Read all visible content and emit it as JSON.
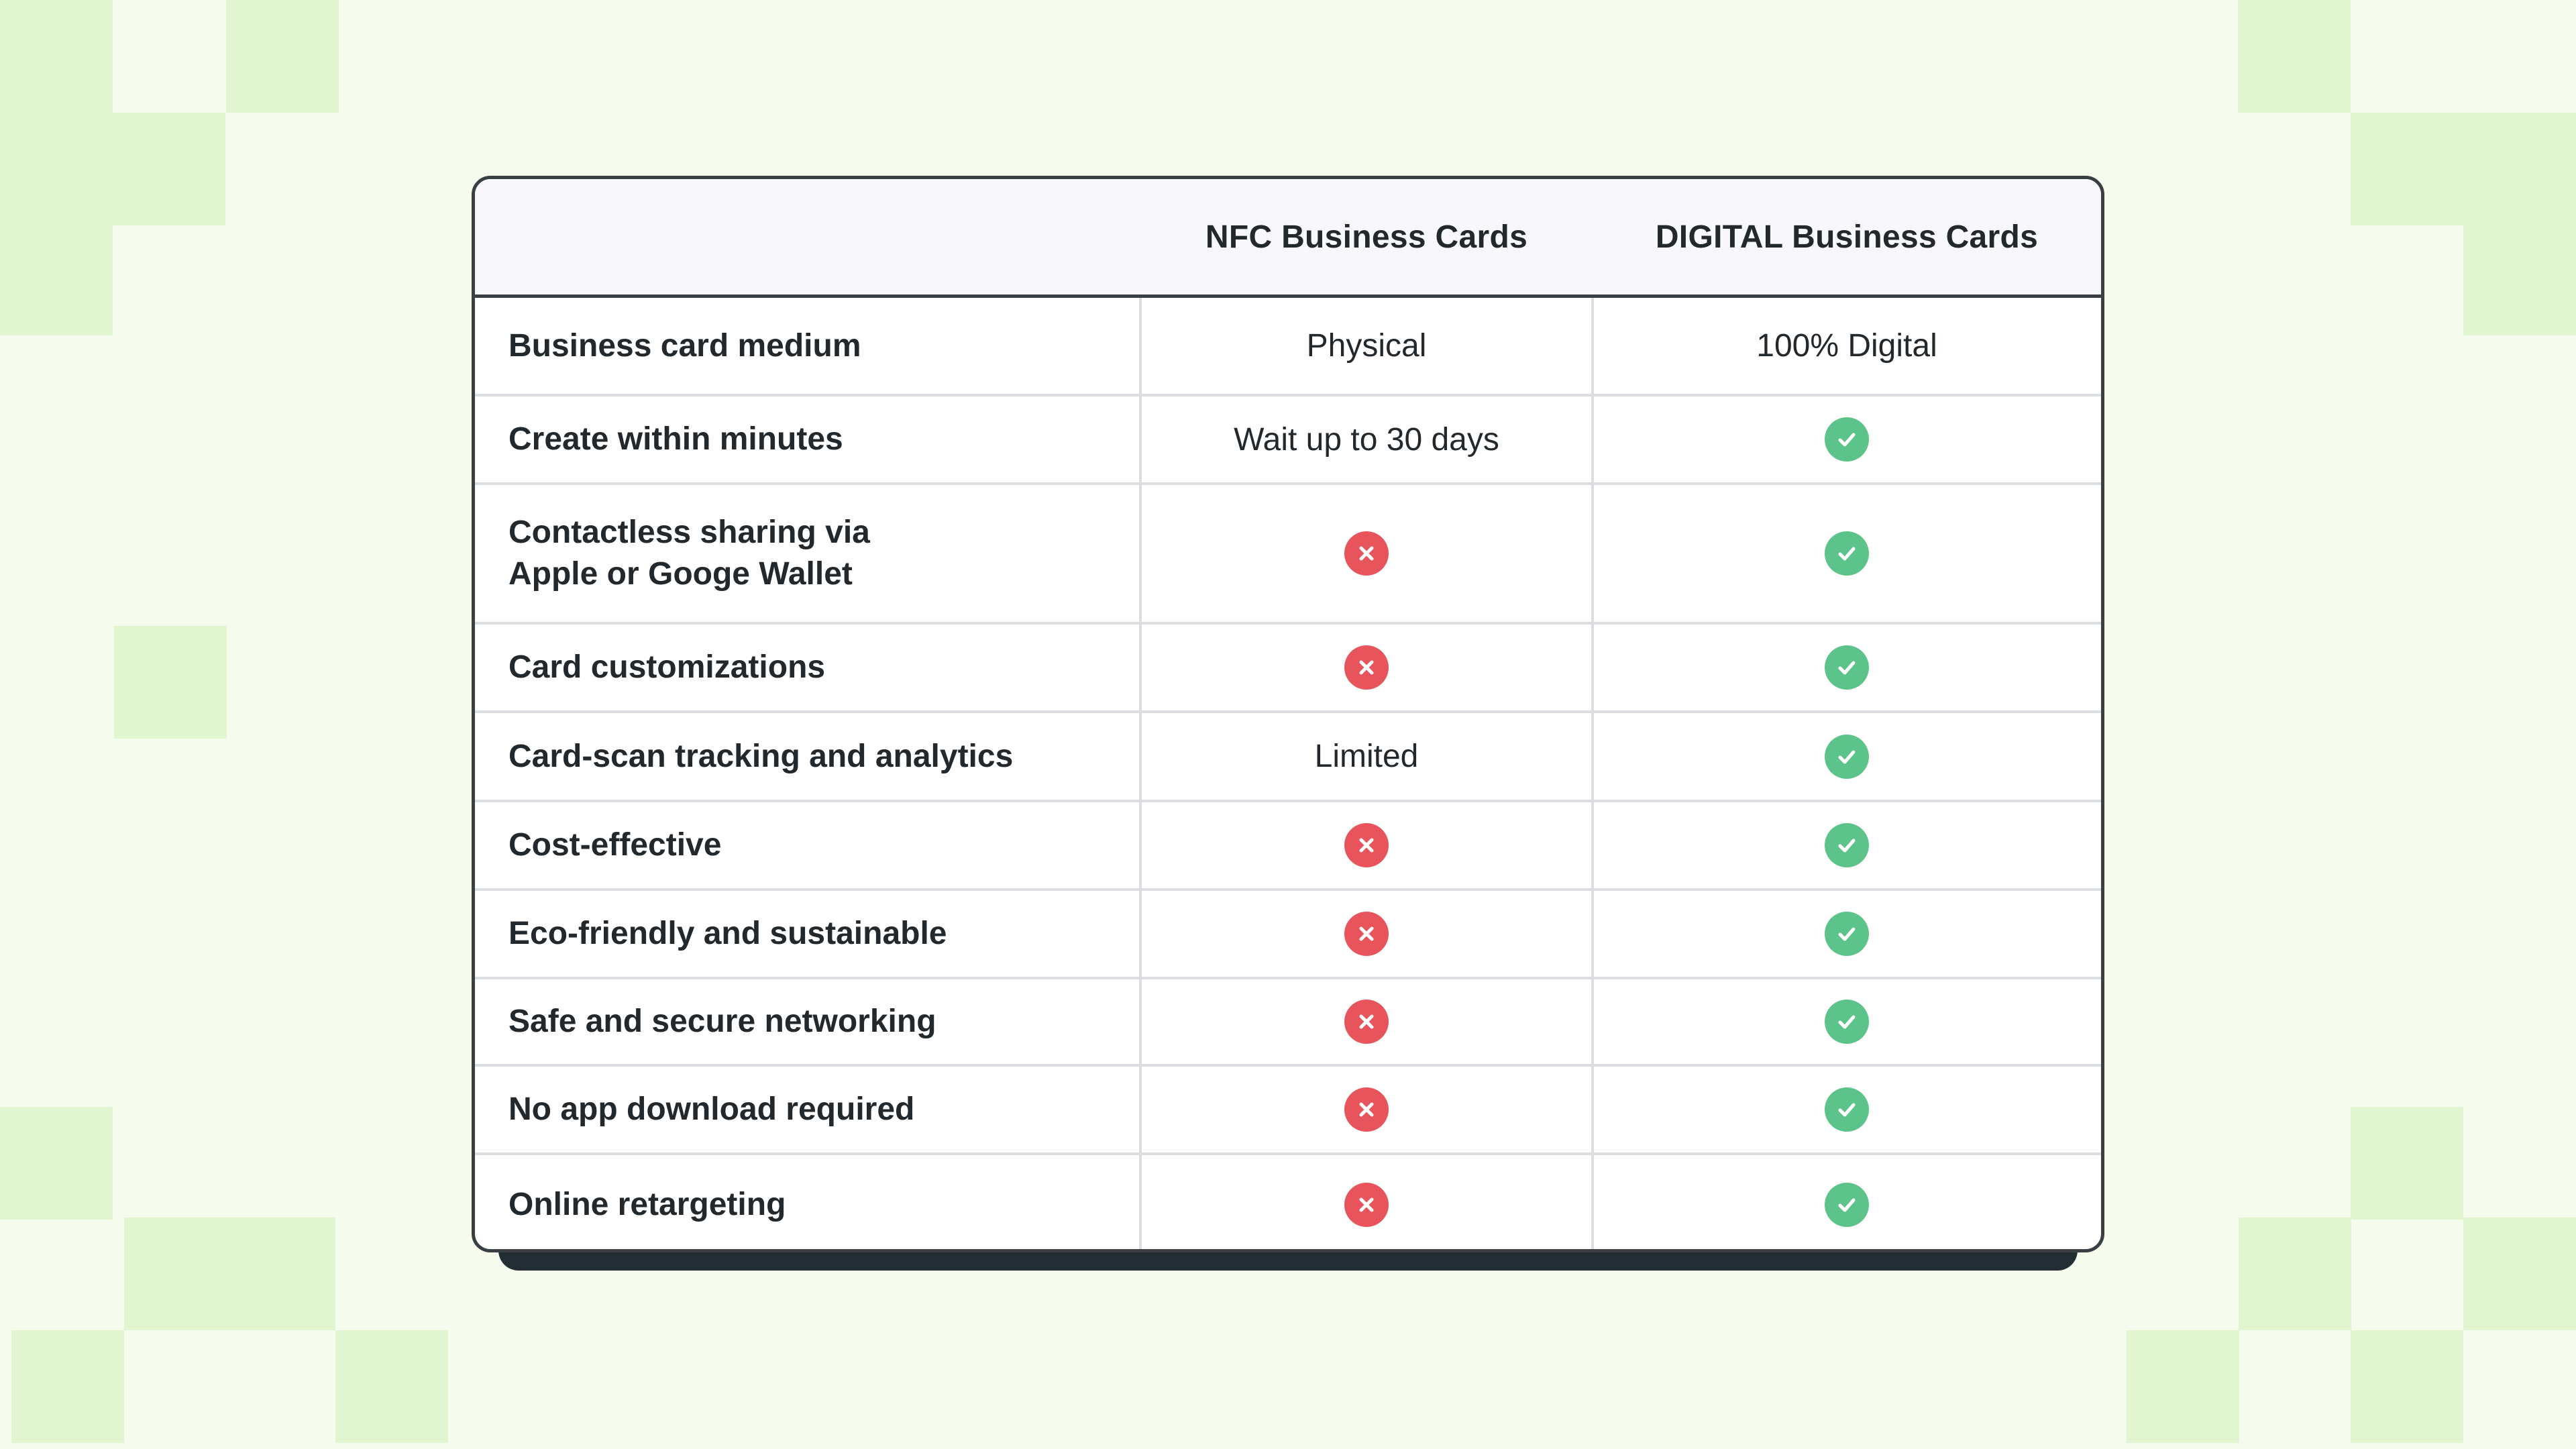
{
  "colors": {
    "background": "#f5fbed",
    "pixel_square": "#e1f6d0",
    "table_border": "#3a3f44",
    "header_bg": "#f7f7fc",
    "text": "#22282c",
    "cross": "#e8545c",
    "check": "#5cc48a",
    "base_shadow": "#232d34"
  },
  "table": {
    "headers": [
      "",
      "NFC Business Cards",
      "DIGITAL Business Cards"
    ],
    "rows": [
      {
        "feature": "Business card medium",
        "nfc": {
          "type": "text",
          "value": "Physical"
        },
        "digital": {
          "type": "text",
          "value": "100% Digital"
        }
      },
      {
        "feature": "Create within minutes",
        "nfc": {
          "type": "text",
          "value": "Wait up to 30 days"
        },
        "digital": {
          "type": "check",
          "value": "yes"
        }
      },
      {
        "feature": "Contactless sharing via\nApple or Googe Wallet",
        "nfc": {
          "type": "cross",
          "value": "no"
        },
        "digital": {
          "type": "check",
          "value": "yes"
        }
      },
      {
        "feature": "Card customizations",
        "nfc": {
          "type": "cross",
          "value": "no"
        },
        "digital": {
          "type": "check",
          "value": "yes"
        }
      },
      {
        "feature": "Card-scan tracking and analytics",
        "nfc": {
          "type": "text",
          "value": "Limited"
        },
        "digital": {
          "type": "check",
          "value": "yes"
        }
      },
      {
        "feature": "Cost-effective",
        "nfc": {
          "type": "cross",
          "value": "no"
        },
        "digital": {
          "type": "check",
          "value": "yes"
        }
      },
      {
        "feature": "Eco-friendly and sustainable",
        "nfc": {
          "type": "cross",
          "value": "no"
        },
        "digital": {
          "type": "check",
          "value": "yes"
        }
      },
      {
        "feature": "Safe and secure networking",
        "nfc": {
          "type": "cross",
          "value": "no"
        },
        "digital": {
          "type": "check",
          "value": "yes"
        }
      },
      {
        "feature": "No app download required",
        "nfc": {
          "type": "cross",
          "value": "no"
        },
        "digital": {
          "type": "check",
          "value": "yes"
        }
      },
      {
        "feature": "Online retargeting",
        "nfc": {
          "type": "cross",
          "value": "no"
        },
        "digital": {
          "type": "check",
          "value": "yes"
        }
      }
    ]
  },
  "icons": {
    "cross": "cross-circle-icon",
    "check": "check-circle-icon"
  }
}
